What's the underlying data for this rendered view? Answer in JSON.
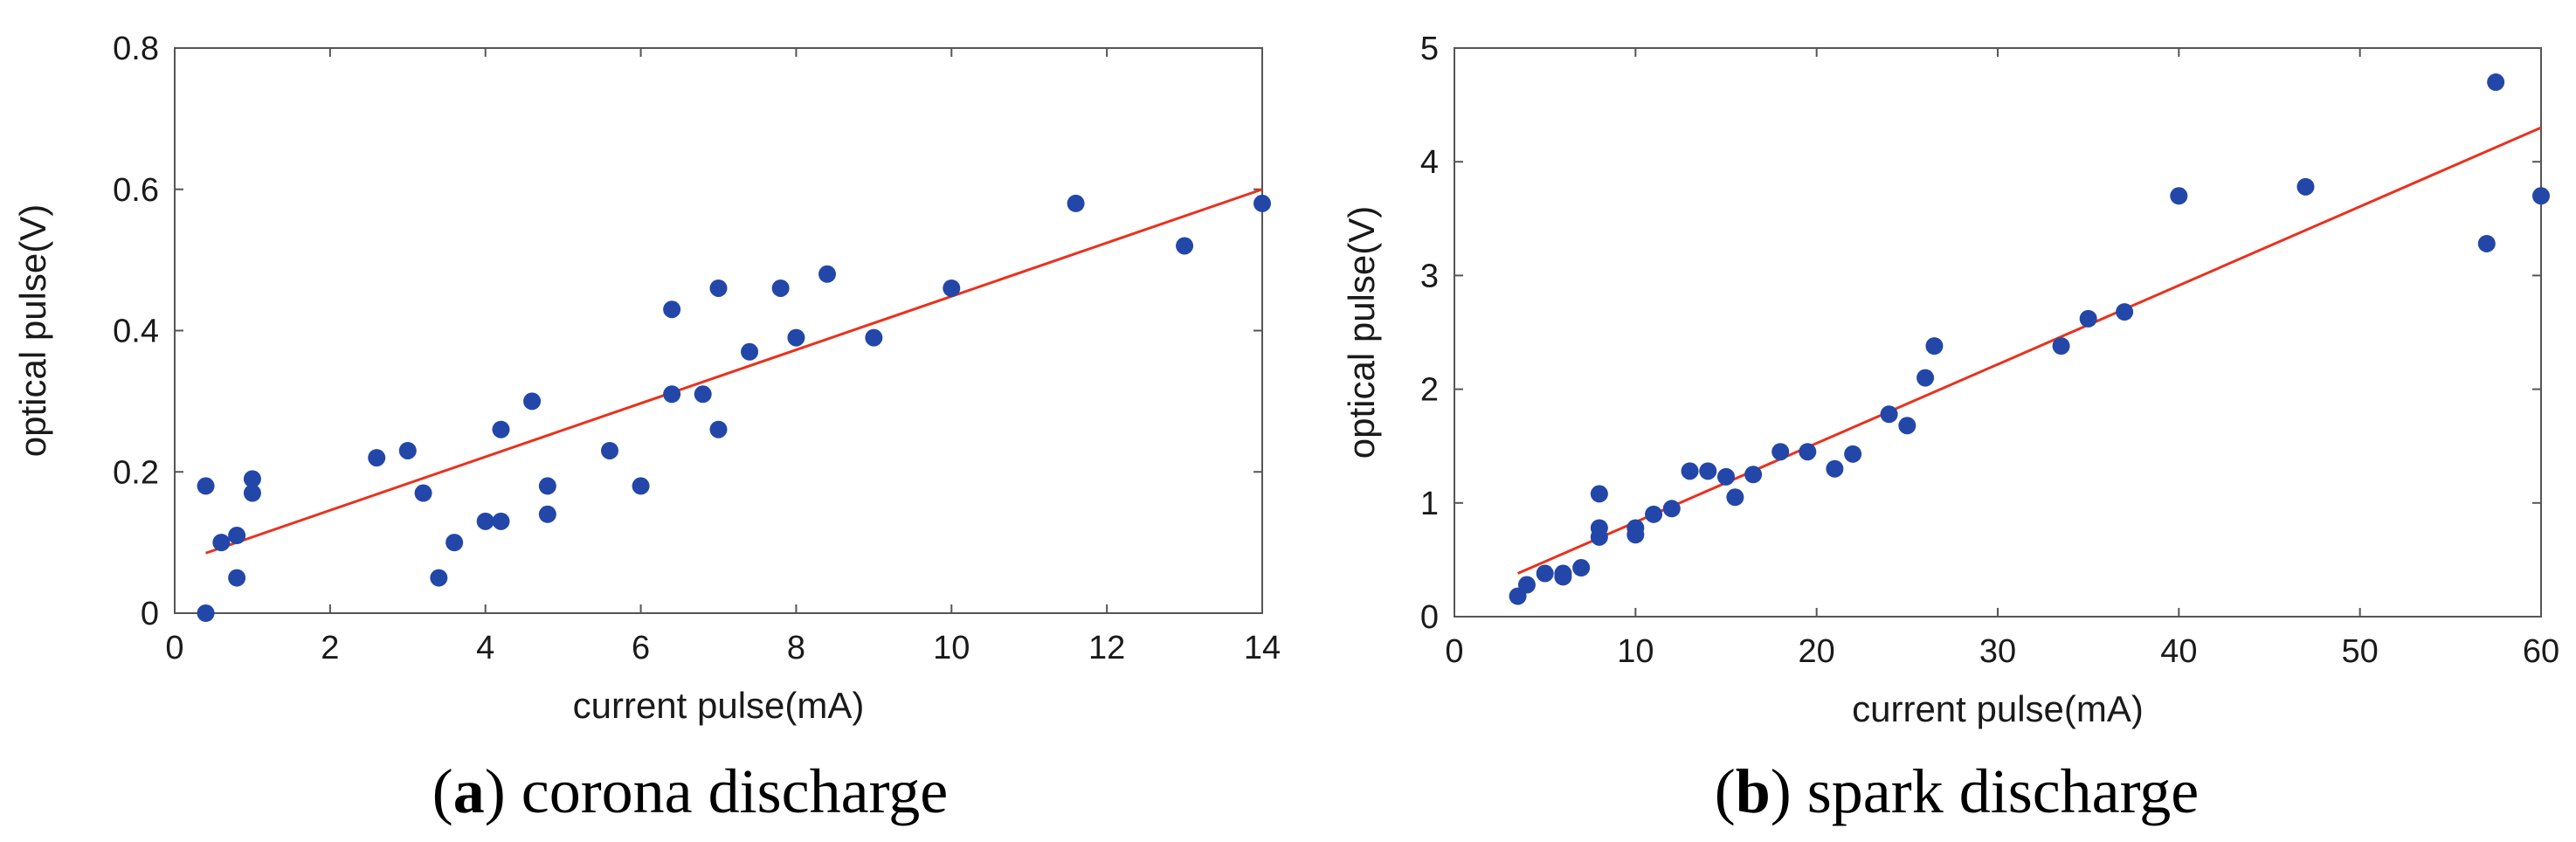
{
  "colors": {
    "point": "#2347a8",
    "fit": "#e8321e",
    "axis": "#555555"
  },
  "chart_data": [
    {
      "type": "scatter",
      "panel_label": "a",
      "caption": "corona discharge",
      "xlabel": "current pulse(mA)",
      "ylabel": "optical pulse(V)",
      "xlim": [
        0,
        14
      ],
      "ylim": [
        0,
        0.8
      ],
      "xticks": [
        0,
        2,
        4,
        6,
        8,
        10,
        12,
        14
      ],
      "yticks": [
        0,
        0.2,
        0.4,
        0.6,
        0.8
      ],
      "xtick_labels": [
        "0",
        "2",
        "4",
        "6",
        "8",
        "10",
        "12",
        "14"
      ],
      "ytick_labels": [
        "0",
        "0.2",
        "0.4",
        "0.6",
        "0.8"
      ],
      "points": [
        [
          0.4,
          0.0
        ],
        [
          0.4,
          0.18
        ],
        [
          0.6,
          0.1
        ],
        [
          0.8,
          0.05
        ],
        [
          0.8,
          0.11
        ],
        [
          1.0,
          0.17
        ],
        [
          1.0,
          0.19
        ],
        [
          2.6,
          0.22
        ],
        [
          3.0,
          0.23
        ],
        [
          3.2,
          0.17
        ],
        [
          3.4,
          0.05
        ],
        [
          3.6,
          0.1
        ],
        [
          4.0,
          0.13
        ],
        [
          4.2,
          0.13
        ],
        [
          4.2,
          0.26
        ],
        [
          4.6,
          0.3
        ],
        [
          4.8,
          0.14
        ],
        [
          4.8,
          0.18
        ],
        [
          5.6,
          0.23
        ],
        [
          6.0,
          0.18
        ],
        [
          6.4,
          0.31
        ],
        [
          6.4,
          0.43
        ],
        [
          6.8,
          0.31
        ],
        [
          7.0,
          0.26
        ],
        [
          7.0,
          0.46
        ],
        [
          7.4,
          0.37
        ],
        [
          7.8,
          0.46
        ],
        [
          8.0,
          0.39
        ],
        [
          8.4,
          0.48
        ],
        [
          9.0,
          0.39
        ],
        [
          10.0,
          0.46
        ],
        [
          11.6,
          0.58
        ],
        [
          13.0,
          0.52
        ],
        [
          14.0,
          0.58
        ]
      ],
      "fit_line": [
        [
          0.4,
          0.085
        ],
        [
          14.0,
          0.6
        ]
      ]
    },
    {
      "type": "scatter",
      "panel_label": "b",
      "caption": "spark discharge",
      "xlabel": "current pulse(mA)",
      "ylabel": "optical pulse(V)",
      "xlim": [
        0,
        60
      ],
      "ylim": [
        0,
        5
      ],
      "xticks": [
        0,
        10,
        20,
        30,
        40,
        50,
        60
      ],
      "yticks": [
        0,
        1,
        2,
        3,
        4,
        5
      ],
      "xtick_labels": [
        "0",
        "10",
        "20",
        "30",
        "40",
        "50",
        "60"
      ],
      "ytick_labels": [
        "0",
        "1",
        "2",
        "3",
        "4",
        "5"
      ],
      "points": [
        [
          3.5,
          0.18
        ],
        [
          4.0,
          0.28
        ],
        [
          5.0,
          0.38
        ],
        [
          6.0,
          0.35
        ],
        [
          6.0,
          0.38
        ],
        [
          7.0,
          0.43
        ],
        [
          8.0,
          0.7
        ],
        [
          8.0,
          0.78
        ],
        [
          8.0,
          1.08
        ],
        [
          10.0,
          0.72
        ],
        [
          10.0,
          0.78
        ],
        [
          11.0,
          0.9
        ],
        [
          12.0,
          0.95
        ],
        [
          13.0,
          1.28
        ],
        [
          14.0,
          1.28
        ],
        [
          15.0,
          1.23
        ],
        [
          15.5,
          1.05
        ],
        [
          16.5,
          1.25
        ],
        [
          18.0,
          1.45
        ],
        [
          19.5,
          1.45
        ],
        [
          21.0,
          1.3
        ],
        [
          22.0,
          1.43
        ],
        [
          24.0,
          1.78
        ],
        [
          25.0,
          1.68
        ],
        [
          26.0,
          2.1
        ],
        [
          26.5,
          2.38
        ],
        [
          33.5,
          2.38
        ],
        [
          35.0,
          2.62
        ],
        [
          37.0,
          2.68
        ],
        [
          40.0,
          3.7
        ],
        [
          47.0,
          3.78
        ],
        [
          57.0,
          3.28
        ],
        [
          57.5,
          4.7
        ],
        [
          60.0,
          3.7
        ]
      ],
      "fit_line": [
        [
          3.5,
          0.38
        ],
        [
          60.0,
          4.3
        ]
      ]
    }
  ]
}
